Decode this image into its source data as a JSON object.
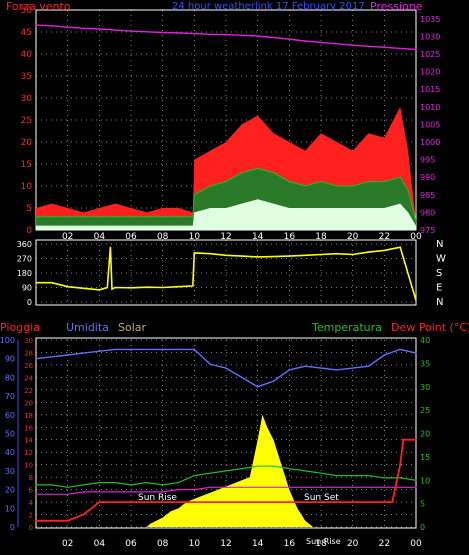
{
  "colors": {
    "wind": "#ff2020",
    "gust_mid": "#20c020",
    "wind_low": "#e0ffe0",
    "pressure": "#e020e0",
    "direction": "#ffff00",
    "humidity": "#6070ff",
    "temperature": "#20c020",
    "dewpoint": "#e020e0",
    "rain": "#ff2020",
    "solar": "#ffff00",
    "grid": "#ffffff",
    "frame_blue": "#3050ff"
  },
  "chart_data": [
    {
      "type": "line",
      "title": "24 hour weatherlink  17 February 2017",
      "left_label": "Forza vento",
      "right_label": "Pressione",
      "x_ticks": [
        "02",
        "04",
        "06",
        "08",
        "10",
        "12",
        "14",
        "16",
        "18",
        "20",
        "22",
        "00"
      ],
      "y_left_ticks": [
        "0",
        "5",
        "10",
        "15",
        "20",
        "25",
        "30",
        "35",
        "40",
        "45",
        "50"
      ],
      "y_right_ticks": [
        "975",
        "980",
        "985",
        "990",
        "995",
        "1000",
        "1005",
        "1010",
        "1015",
        "1020",
        "1025",
        "1030",
        "1035"
      ],
      "ylim_left": [
        0,
        50
      ],
      "ylim_right": [
        975,
        1037.5
      ],
      "series": [
        {
          "key": "pressure",
          "x": [
            0,
            1,
            2,
            3,
            4,
            5,
            6,
            7,
            8,
            9,
            10,
            11,
            12,
            13,
            14,
            15,
            16,
            17,
            18,
            19,
            20,
            21,
            22,
            23,
            24
          ],
          "values": [
            1033.2,
            1033,
            1032.6,
            1032.3,
            1032.1,
            1031.8,
            1031.5,
            1031.3,
            1031.1,
            1031,
            1030.8,
            1030.6,
            1030.5,
            1030.3,
            1030.1,
            1029.7,
            1029.2,
            1028.7,
            1028.3,
            1027.9,
            1027.5,
            1027.2,
            1026.9,
            1026.6,
            1026.3
          ]
        },
        {
          "key": "wind_max",
          "x": [
            0,
            1,
            2,
            3,
            4,
            5,
            6,
            7,
            8,
            9,
            9.9,
            10,
            11,
            12,
            13,
            14,
            15,
            16,
            17,
            18,
            19,
            20,
            21,
            22,
            23,
            23.5,
            24
          ],
          "values": [
            5,
            6,
            5,
            4,
            5,
            6,
            5,
            4,
            5,
            5,
            4,
            16,
            18,
            20,
            24,
            26,
            22,
            20,
            18,
            22,
            20,
            18,
            22,
            21,
            28,
            18,
            2
          ]
        },
        {
          "key": "wind_mid",
          "x": [
            0,
            1,
            2,
            3,
            4,
            5,
            6,
            7,
            8,
            9,
            9.9,
            10,
            11,
            12,
            13,
            14,
            15,
            16,
            17,
            18,
            19,
            20,
            21,
            22,
            23,
            23.5,
            24
          ],
          "values": [
            3,
            3,
            3,
            3,
            3,
            3,
            3,
            3,
            3,
            3,
            3,
            8,
            10,
            11,
            13,
            14,
            13,
            11,
            10,
            11,
            10,
            10,
            11,
            11,
            12,
            9,
            2
          ]
        },
        {
          "key": "wind_low",
          "x": [
            0,
            1,
            2,
            3,
            4,
            5,
            6,
            7,
            8,
            9,
            9.9,
            10,
            11,
            12,
            13,
            14,
            15,
            16,
            17,
            18,
            19,
            20,
            21,
            22,
            23,
            23.5,
            24
          ],
          "values": [
            1,
            1,
            1,
            1,
            1,
            1,
            1,
            1,
            1,
            1,
            1,
            4,
            5,
            5,
            6,
            7,
            6,
            5,
            5,
            5,
            5,
            5,
            5,
            5,
            6,
            4,
            1
          ]
        }
      ]
    },
    {
      "type": "line",
      "y_left_ticks": [
        "0",
        "90",
        "180",
        "270",
        "360"
      ],
      "y_right_labels": [
        "N",
        "W",
        "S",
        "E",
        "N"
      ],
      "ylim": [
        0,
        360
      ],
      "series": [
        {
          "key": "direction",
          "x": [
            0,
            1,
            2,
            3,
            3.5,
            4,
            4.5,
            4.7,
            4.8,
            5,
            6,
            7,
            8,
            9,
            9.9,
            10,
            11,
            12,
            13,
            14,
            15,
            16,
            17,
            18,
            19,
            20,
            21,
            22,
            23,
            24
          ],
          "values": [
            120,
            120,
            95,
            85,
            80,
            75,
            90,
            340,
            80,
            90,
            88,
            92,
            90,
            95,
            100,
            305,
            300,
            290,
            285,
            280,
            282,
            285,
            290,
            295,
            300,
            295,
            310,
            320,
            340,
            10
          ]
        }
      ]
    },
    {
      "type": "line",
      "left_label": "Pioggia",
      "humidity_label": "Umidita",
      "solar_label": "Solar",
      "temperature_label": "Temperatura",
      "dewpoint_label": "Dew Point (°C)",
      "annotations": [
        "Sun Rise",
        "Sun Set",
        "Sun Rise"
      ],
      "x_ticks": [
        "02",
        "04",
        "06",
        "08",
        "10",
        "12",
        "14",
        "16",
        "18",
        "20",
        "22",
        "00"
      ],
      "y_far_left_ticks": [
        "0",
        "10",
        "20",
        "30",
        "40",
        "50",
        "60",
        "70",
        "80",
        "90",
        "100"
      ],
      "y_left_ticks": [
        "0",
        "2",
        "4",
        "6",
        "8",
        "10",
        "12",
        "14",
        "16",
        "18",
        "20",
        "22",
        "24",
        "26",
        "28",
        "30"
      ],
      "y_right_ticks": [
        "0",
        "5",
        "10",
        "15",
        "20",
        "25",
        "30",
        "35",
        "40"
      ],
      "ylim_humidity": [
        0,
        100
      ],
      "ylim_rain": [
        0,
        30
      ],
      "ylim_temp": [
        0,
        40
      ],
      "series": [
        {
          "key": "humidity",
          "x": [
            0,
            1,
            2,
            3,
            4,
            5,
            6,
            7,
            8,
            9,
            10,
            11,
            12,
            13,
            14,
            15,
            16,
            17,
            18,
            19,
            20,
            21,
            22,
            23,
            24
          ],
          "values": [
            90,
            91,
            92,
            93,
            94,
            95,
            95,
            95,
            95,
            95,
            95,
            87,
            85,
            80,
            75,
            78,
            84,
            86,
            85,
            84,
            85,
            86,
            92,
            95,
            93
          ]
        },
        {
          "key": "temperature",
          "x": [
            0,
            1,
            2,
            3,
            4,
            5,
            6,
            7,
            8,
            9,
            10,
            11,
            12,
            13,
            14,
            15,
            16,
            17,
            18,
            19,
            20,
            21,
            22,
            23,
            24
          ],
          "values": [
            9,
            9,
            8.5,
            9,
            9.5,
            9.5,
            9,
            9.5,
            9,
            9.5,
            11,
            11.5,
            12,
            12.5,
            13,
            13,
            12.5,
            12,
            11.5,
            11,
            11,
            11,
            10.5,
            10.5,
            10
          ]
        },
        {
          "key": "dewpoint",
          "x": [
            0,
            1,
            2,
            3,
            4,
            5,
            6,
            7,
            8,
            9,
            10,
            11,
            12,
            13,
            14,
            15,
            16,
            17,
            18,
            19,
            20,
            21,
            22,
            23,
            24
          ],
          "values": [
            7,
            7,
            7,
            7.5,
            7.5,
            7.5,
            7.5,
            7.5,
            7.5,
            8,
            8,
            8.5,
            8.5,
            8.5,
            8.5,
            8.5,
            8.5,
            8.5,
            8.5,
            8.5,
            8.5,
            8.5,
            8.5,
            8.5,
            8.5
          ]
        },
        {
          "key": "rain",
          "x": [
            0,
            2,
            3,
            3.5,
            4,
            6,
            8,
            10,
            12,
            14,
            16,
            18,
            20,
            22,
            22.5,
            23,
            23.2,
            23.5,
            24
          ],
          "values": [
            1,
            1,
            2,
            3,
            4,
            4,
            4,
            4,
            4,
            4,
            4,
            4,
            4,
            4,
            4,
            10,
            14,
            14,
            14
          ]
        },
        {
          "key": "solar",
          "x": [
            0,
            7,
            7.2,
            8,
            8.5,
            9,
            9.5,
            10,
            10.5,
            11,
            11.5,
            12,
            12.5,
            13,
            13.5,
            14,
            14.3,
            14.6,
            15,
            15.5,
            16,
            16.5,
            17,
            17.5,
            24
          ],
          "values": [
            0,
            0,
            0.5,
            1.5,
            2.5,
            3,
            4,
            4.5,
            5,
            5.5,
            6,
            6.5,
            7,
            7.5,
            8,
            14,
            18,
            16,
            14,
            10,
            6,
            3,
            1,
            0,
            0
          ]
        }
      ]
    }
  ]
}
